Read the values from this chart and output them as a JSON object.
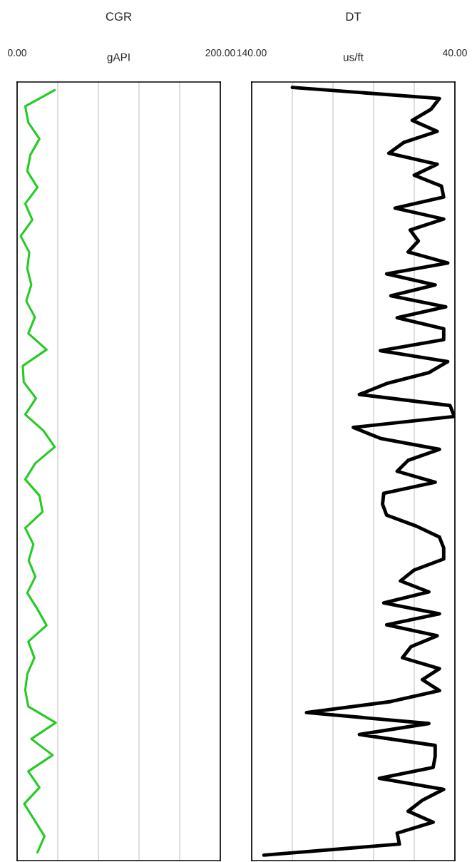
{
  "chart_data": [
    {
      "type": "line",
      "title": "CGR",
      "xlabel": "gAPI",
      "orientation": "horizontal",
      "relative": false,
      "grid": "x",
      "tick_labels": "x",
      "legend": false,
      "xlim": [
        0,
        200
      ],
      "xticks": [
        {
          "value": 0,
          "label": "0.00"
        },
        {
          "value": 40,
          "label": null
        },
        {
          "value": 80,
          "label": null
        },
        {
          "value": 120,
          "label": null
        },
        {
          "value": 160,
          "label": null
        },
        {
          "value": 200,
          "label": "200.00"
        }
      ],
      "categories": [
        null,
        null,
        null,
        null,
        null,
        null,
        null,
        null,
        null,
        null,
        null,
        null,
        null,
        null,
        null,
        null,
        null,
        null,
        null,
        null,
        null,
        null,
        null,
        null,
        null,
        null,
        null,
        null,
        null,
        null,
        null,
        null,
        null,
        null,
        null,
        null,
        null,
        null,
        null,
        null,
        null,
        null,
        null,
        null,
        null,
        null,
        null,
        null
      ],
      "series": [
        {
          "color": "#22cc22",
          "values": [
            37,
            8,
            11,
            22,
            13,
            10,
            20,
            8,
            15,
            3.5,
            12,
            10,
            14,
            9,
            17.5,
            11,
            29,
            5.6,
            6.5,
            18.6,
            8,
            26,
            37,
            18,
            8,
            22,
            25,
            8,
            16,
            11.4,
            18,
            10,
            20,
            29,
            11,
            17,
            10,
            8,
            11,
            38,
            14,
            35,
            11,
            22,
            7,
            17,
            27,
            20
          ]
        }
      ]
    },
    {
      "type": "line",
      "title": "DT",
      "xlabel": "us/ft",
      "orientation": "horizontal",
      "relative": false,
      "grid": "x",
      "tick_labels": "x",
      "legend": false,
      "xlim": [
        140,
        40
      ],
      "xticks": [
        {
          "value": 140,
          "label": "140.00"
        },
        {
          "value": 120,
          "label": null
        },
        {
          "value": 100,
          "label": null
        },
        {
          "value": 80,
          "label": null
        },
        {
          "value": 60,
          "label": null
        },
        {
          "value": 40,
          "label": "40.00"
        }
      ],
      "categories": [
        null,
        null,
        null,
        null,
        null,
        null,
        null,
        null,
        null,
        null,
        null,
        null,
        null,
        null,
        null,
        null,
        null,
        null,
        null,
        null,
        null,
        null,
        null,
        null,
        null,
        null,
        null,
        null,
        null,
        null,
        null,
        null,
        null,
        null,
        null,
        null,
        null,
        null,
        null,
        null,
        null,
        null,
        null,
        null,
        null,
        null,
        null,
        null,
        null,
        null,
        null,
        null,
        null,
        null,
        null,
        null,
        null,
        null,
        null,
        null,
        null,
        null,
        null,
        null,
        null,
        null,
        null,
        null,
        null,
        null,
        null
      ],
      "series": [
        {
          "color": "#000000",
          "values": [
            120,
            47.6,
            51.8,
            61,
            48.7,
            65,
            72.5,
            48.7,
            60,
            46.6,
            45.5,
            69.4,
            45.5,
            62,
            58,
            63,
            43.5,
            73.6,
            49.7,
            71.5,
            44.5,
            68.4,
            45.5,
            45.5,
            76.7,
            43.5,
            52.8,
            73.6,
            87,
            42.4,
            40.3,
            90,
            76.7,
            47.6,
            63,
            68.4,
            49.7,
            75,
            75.6,
            73.6,
            59,
            47.6,
            45.5,
            45.5,
            60,
            66.8,
            52.8,
            75,
            47.6,
            73.6,
            48.7,
            61.6,
            65.8,
            47.6,
            56,
            47.6,
            71.5,
            113,
            52.8,
            87,
            49.7,
            49.7,
            50.7,
            77.2,
            45.5,
            56,
            63,
            50.7,
            68.4,
            67.3,
            134
          ]
        }
      ]
    }
  ]
}
